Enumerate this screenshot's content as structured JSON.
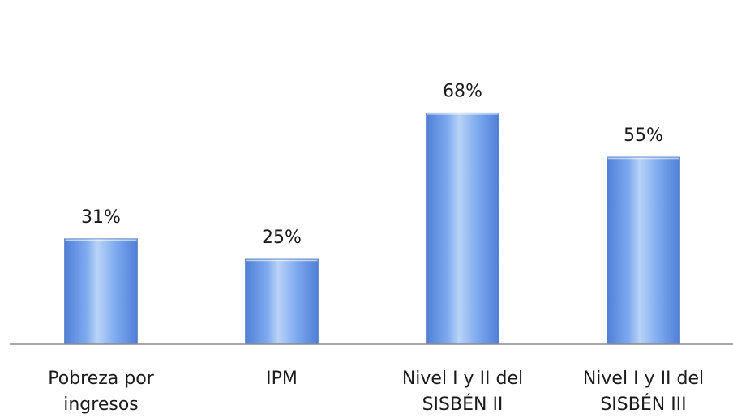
{
  "chart_data": {
    "type": "bar",
    "title": "",
    "xlabel": "",
    "ylabel": "",
    "categories": [
      [
        "Pobreza por",
        "ingresos"
      ],
      [
        "IPM"
      ],
      [
        "Nivel I y II del",
        "SISBÉN II"
      ],
      [
        "Nivel I y II del",
        "SISBÉN III"
      ]
    ],
    "values": [
      31,
      25,
      68,
      55
    ],
    "value_labels": [
      "31%",
      "25%",
      "68%",
      "55%"
    ],
    "unit": "%",
    "ylim": [
      0,
      80
    ],
    "grid": false,
    "legend": "none",
    "colors": {
      "bar_light": "#b9d3f7",
      "bar_mid": "#7eaaf0",
      "bar_dark": "#4f7fd6",
      "bar_edge": "#6f8fc8",
      "axis": "#8a8a8a"
    }
  }
}
